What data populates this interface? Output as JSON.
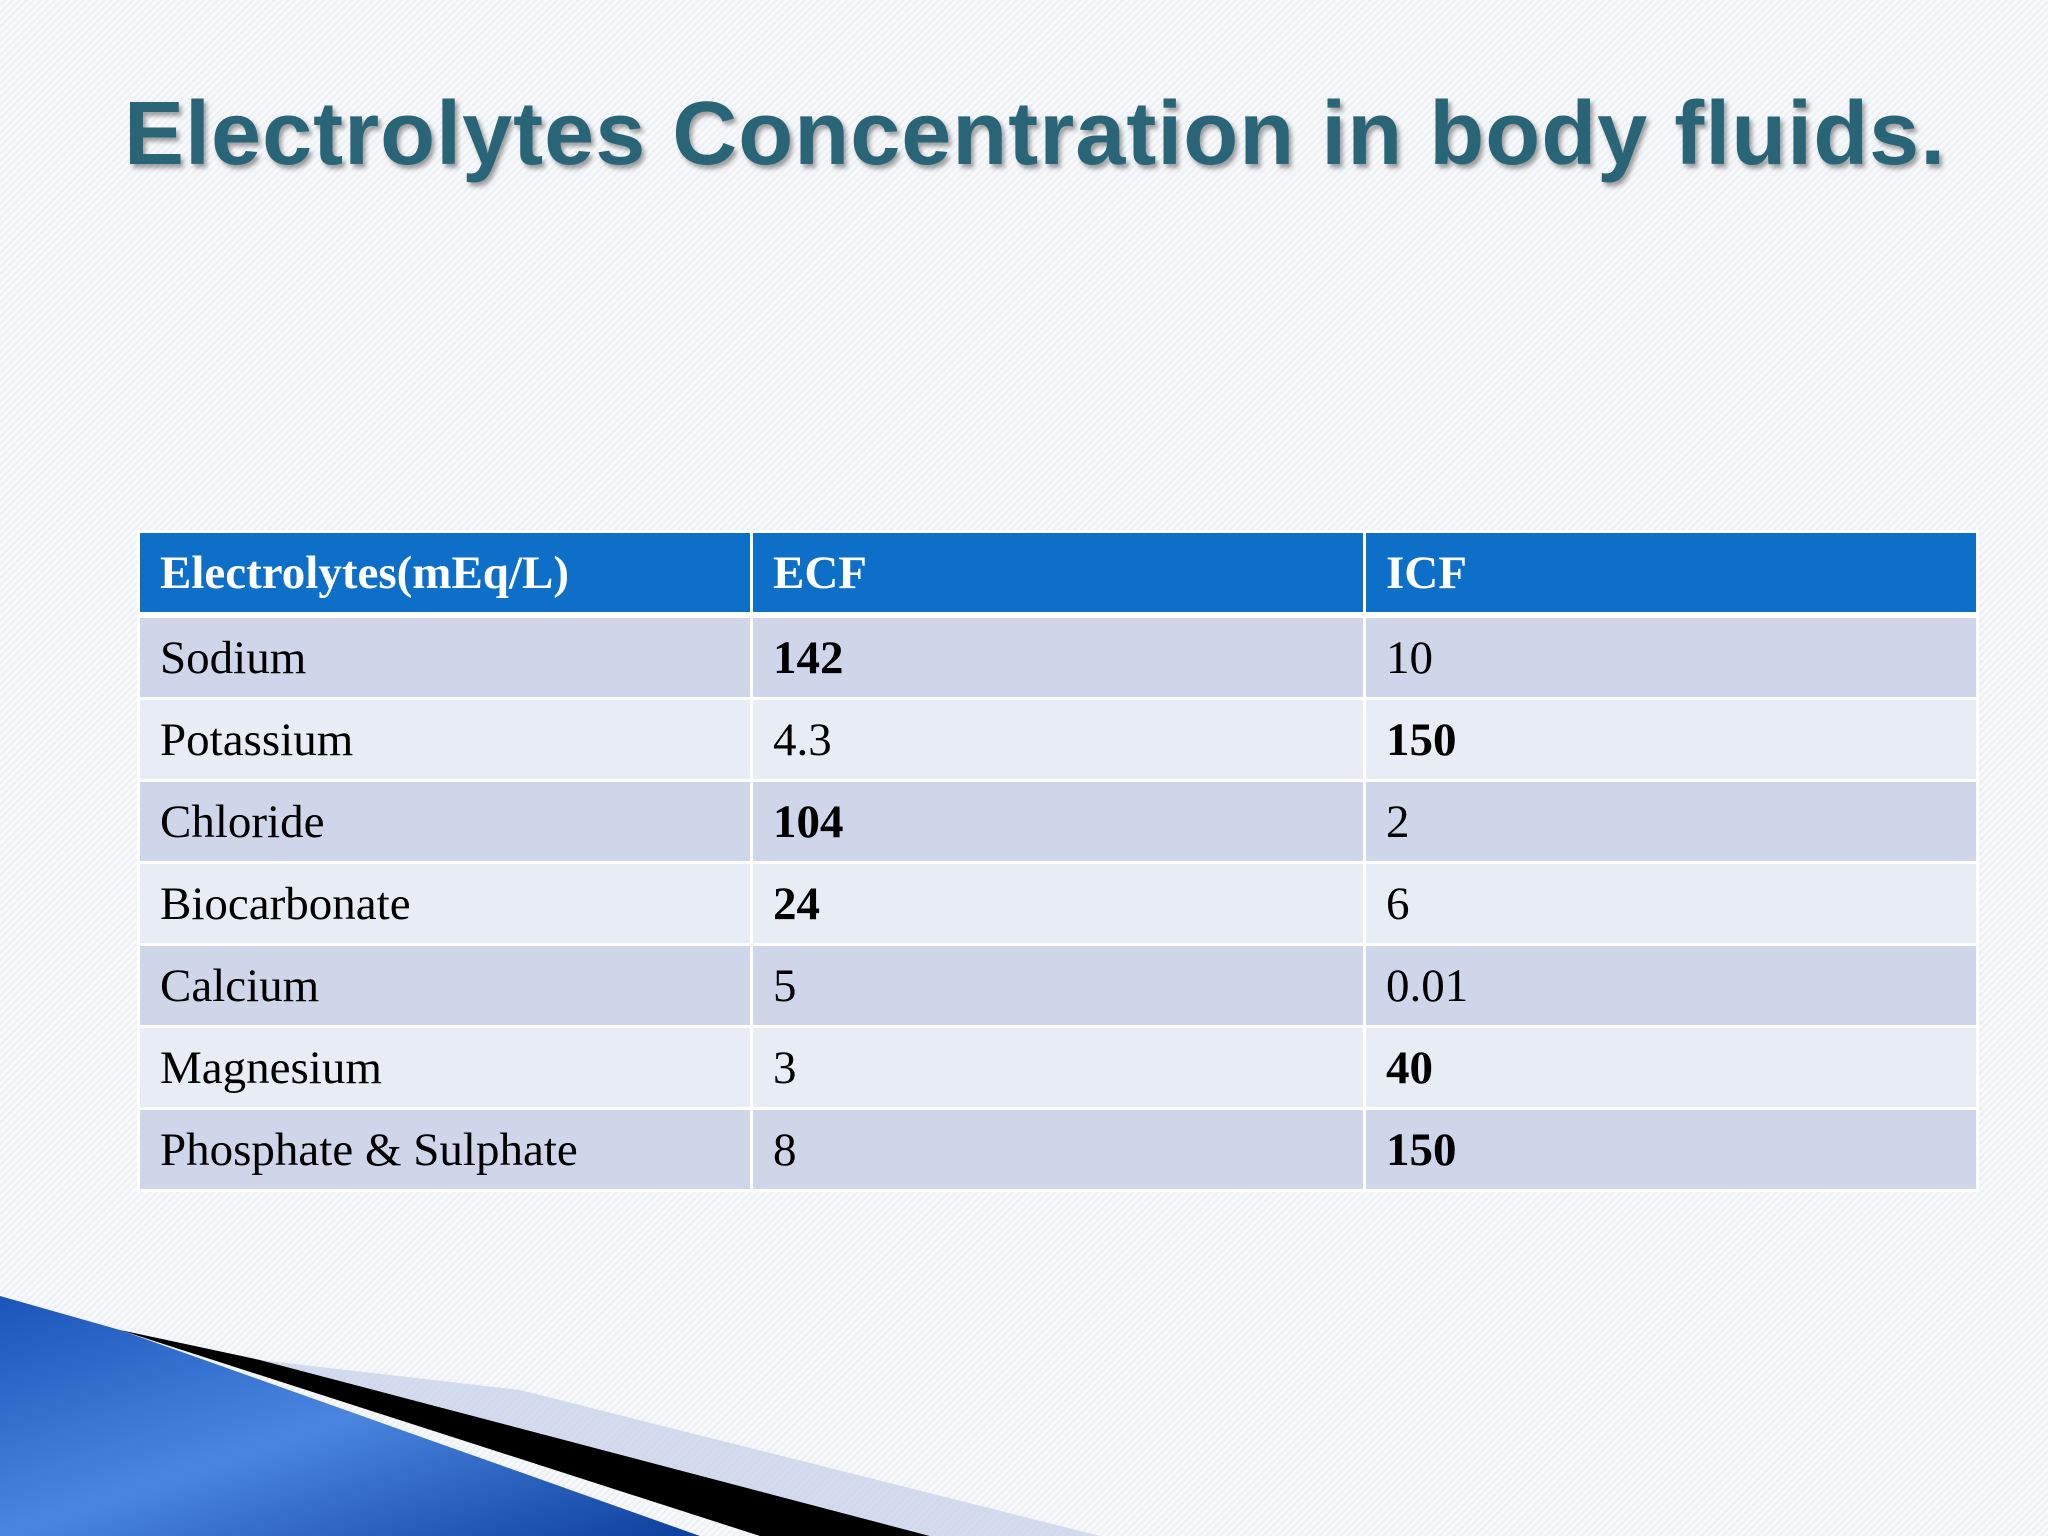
{
  "title": "Electrolytes Concentration in body fluids.",
  "table": {
    "header": [
      "Electrolytes(mEq/L)",
      "ECF",
      "ICF"
    ],
    "rows": [
      [
        "Sodium",
        "142",
        "10"
      ],
      [
        "Potassium",
        "4.3",
        "150"
      ],
      [
        "Chloride",
        "104",
        "2"
      ],
      [
        "Biocarbonate",
        "24",
        "6"
      ],
      [
        "Calcium",
        "5",
        "0.01"
      ],
      [
        "Magnesium",
        "3",
        "40"
      ],
      [
        "Phosphate & Sulphate",
        "8",
        "150"
      ]
    ]
  }
}
